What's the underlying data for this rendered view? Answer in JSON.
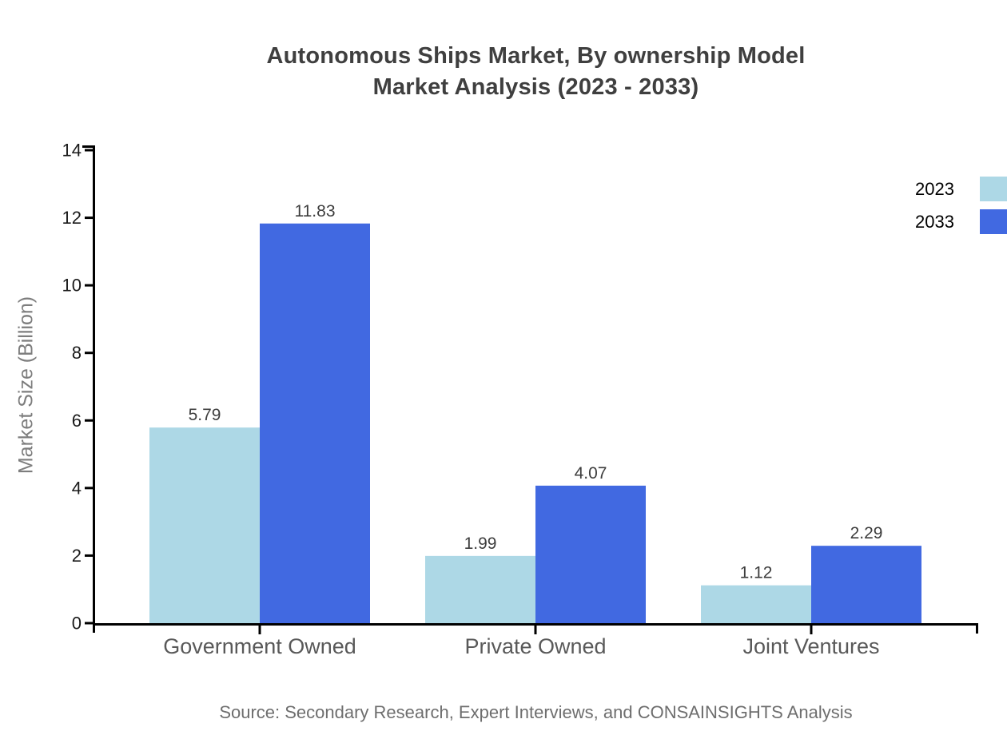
{
  "chart_data": {
    "type": "bar",
    "title_lines": [
      "Autonomous Ships Market, By ownership Model",
      "Market Analysis (2023 - 2033)"
    ],
    "categories": [
      "Government Owned",
      "Private Owned",
      "Joint Ventures"
    ],
    "series": [
      {
        "name": "2023",
        "color": "#ADD8E6",
        "values": [
          5.79,
          1.99,
          1.12
        ]
      },
      {
        "name": "2033",
        "color": "#4169E1",
        "values": [
          11.83,
          4.07,
          2.29
        ]
      }
    ],
    "value_labels": [
      "5.79",
      "11.83",
      "1.99",
      "4.07",
      "1.12",
      "2.29"
    ],
    "xlabel": "",
    "ylabel": "Market Size (Billion)",
    "ylim": [
      0,
      14
    ],
    "yticks": [
      0,
      2,
      4,
      6,
      8,
      10,
      12,
      14
    ],
    "grid": false,
    "legend_position": "right",
    "axis_color": "#000000",
    "tick_label_color": "#1a1a1a",
    "category_label_color": "#595959",
    "value_label_color": "#3d3d3d",
    "source": "Source: Secondary Research, Expert Interviews, and CONSAINSIGHTS Analysis"
  }
}
